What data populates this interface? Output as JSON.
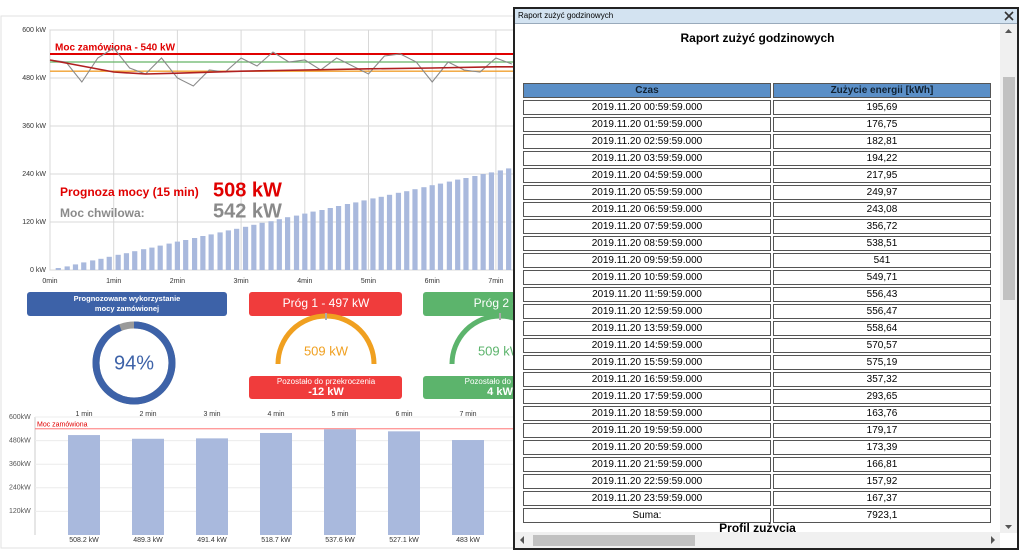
{
  "chart_data": [
    {
      "type": "bar-line",
      "grid": true,
      "xlim": [
        0,
        15
      ],
      "xticks": [
        {
          "value": 0,
          "label": "0min"
        },
        {
          "value": 1,
          "label": "1min"
        },
        {
          "value": 2,
          "label": "2min"
        },
        {
          "value": 3,
          "label": "3min"
        },
        {
          "value": 4,
          "label": "4min"
        },
        {
          "value": 5,
          "label": "5min"
        },
        {
          "value": 6,
          "label": "6min"
        },
        {
          "value": 7,
          "label": "7min"
        }
      ],
      "ylim": [
        0,
        600
      ],
      "yticks": [
        {
          "value": 0,
          "label": "0 kW"
        },
        {
          "value": 120,
          "label": "120 kW"
        },
        {
          "value": 240,
          "label": "240 kW"
        },
        {
          "value": 360,
          "label": "360 kW"
        },
        {
          "value": 480,
          "label": "480 kW"
        },
        {
          "value": 600,
          "label": "600 kW"
        }
      ],
      "series": [
        {
          "type": "bar",
          "color": "#a9b9dd",
          "x": [
            0.13,
            0.27,
            0.4,
            0.53,
            0.67,
            0.8,
            0.93,
            1.07,
            1.2,
            1.33,
            1.47,
            1.6,
            1.73,
            1.87,
            2,
            2.13,
            2.27,
            2.4,
            2.53,
            2.67,
            2.8,
            2.93,
            3.07,
            3.2,
            3.33,
            3.47,
            3.6,
            3.73,
            3.87,
            4,
            4.13,
            4.27,
            4.4,
            4.53,
            4.67,
            4.8,
            4.93,
            5.07,
            5.2,
            5.33,
            5.47,
            5.6,
            5.73,
            5.87,
            6,
            6.13,
            6.27,
            6.4,
            6.53,
            6.67,
            6.8,
            6.93,
            7.07,
            7.2
          ],
          "values": [
            5,
            9,
            14,
            19,
            24,
            28,
            33,
            38,
            42,
            47,
            52,
            56,
            61,
            66,
            71,
            75,
            80,
            85,
            89,
            94,
            99,
            103,
            108,
            113,
            118,
            122,
            127,
            132,
            136,
            141,
            146,
            150,
            155,
            160,
            165,
            169,
            174,
            179,
            183,
            188,
            193,
            197,
            202,
            207,
            212,
            216,
            221,
            226,
            230,
            235,
            240,
            244,
            249,
            254
          ]
        },
        {
          "type": "line",
          "color": "#8a8a8a",
          "x": [
            0,
            0.25,
            0.5,
            0.75,
            1,
            1.25,
            1.5,
            1.75,
            2,
            2.25,
            2.5,
            2.75,
            3,
            3.25,
            3.5,
            3.75,
            4,
            4.25,
            4.5,
            4.75,
            5,
            5.25,
            5.5,
            5.75,
            6,
            6.25,
            6.5,
            6.75,
            7,
            7.25
          ],
          "values": [
            525,
            520,
            470,
            530,
            555,
            505,
            490,
            530,
            480,
            460,
            500,
            495,
            530,
            510,
            545,
            520,
            525,
            500,
            530,
            510,
            490,
            535,
            540,
            520,
            470,
            520,
            500,
            495,
            530,
            515
          ]
        },
        {
          "type": "line",
          "color": "#b02020",
          "x": [
            0,
            0.5,
            1,
            1.5,
            2,
            3,
            4,
            5,
            6,
            7,
            7.3
          ],
          "values": [
            525,
            510,
            495,
            490,
            492,
            497,
            500,
            503,
            505,
            508,
            508
          ]
        }
      ],
      "thresholds": [
        {
          "value": 540,
          "color": "#e00000",
          "label": "Moc zamówiona - 540 kW"
        },
        {
          "value": 520,
          "color": "#66b466"
        },
        {
          "value": 497,
          "color": "#f0a030"
        }
      ],
      "annotations": [
        {
          "text": "Prognoza mocy (15 min)",
          "value_text": "508 kW",
          "color": "#e00000"
        },
        {
          "text": "Moc chwilowa:",
          "value_text": "542 kW",
          "color": "#8a8a8a"
        }
      ]
    },
    {
      "type": "bar",
      "color": "#a9b9dd",
      "categories": [
        "1 min",
        "2 min",
        "3 min",
        "4 min",
        "5 min",
        "6 min",
        "7 min"
      ],
      "values": [
        508.2,
        489.3,
        491.4,
        518.7,
        537.6,
        527.1,
        483
      ],
      "value_labels": [
        "508.2 kW",
        "489.3 kW",
        "491.4 kW",
        "518.7 kW",
        "537.6 kW",
        "527.1 kW",
        "483 kW"
      ],
      "ylim": [
        0,
        600
      ],
      "yticks": [
        {
          "value": 120,
          "label": "120kW"
        },
        {
          "value": 240,
          "label": "240kW"
        },
        {
          "value": 360,
          "label": "360kW"
        },
        {
          "value": 480,
          "label": "480kW"
        },
        {
          "value": 600,
          "label": "600kW"
        }
      ],
      "ref_line": {
        "value": 540,
        "label": "Moc zamówiona",
        "color": "#ff6060"
      }
    }
  ],
  "widgets": {
    "forecast": {
      "title_lines": [
        "Prognozowane wykorzystanie",
        "mocy zamówionej"
      ],
      "value": 94,
      "value_label": "94%"
    },
    "threshold1": {
      "title": "Próg 1 - 497 kW",
      "gauge_label": "509 kW",
      "remaining_title": "Pozostało do przekroczenia",
      "remaining": "-12 kW"
    },
    "threshold2": {
      "title": "Próg 2 - 5",
      "gauge_label": "509 kW",
      "remaining_title": "Pozostało do przekr",
      "remaining": "4 kW"
    }
  },
  "report": {
    "window_title": "Raport zużyć godzinowych",
    "heading": "Raport zużyć godzinowych",
    "columns": [
      "Czas",
      "Zużycie energii [kWh]"
    ],
    "rows": [
      [
        "2019.11.20 00:59:59.000",
        "195,69"
      ],
      [
        "2019.11.20 01:59:59.000",
        "176,75"
      ],
      [
        "2019.11.20 02:59:59.000",
        "182,81"
      ],
      [
        "2019.11.20 03:59:59.000",
        "194,22"
      ],
      [
        "2019.11.20 04:59:59.000",
        "217,95"
      ],
      [
        "2019.11.20 05:59:59.000",
        "249,97"
      ],
      [
        "2019.11.20 06:59:59.000",
        "243,08"
      ],
      [
        "2019.11.20 07:59:59.000",
        "356,72"
      ],
      [
        "2019.11.20 08:59:59.000",
        "538,51"
      ],
      [
        "2019.11.20 09:59:59.000",
        "541"
      ],
      [
        "2019.11.20 10:59:59.000",
        "549,71"
      ],
      [
        "2019.11.20 11:59:59.000",
        "556,43"
      ],
      [
        "2019.11.20 12:59:59.000",
        "556,47"
      ],
      [
        "2019.11.20 13:59:59.000",
        "558,64"
      ],
      [
        "2019.11.20 14:59:59.000",
        "570,57"
      ],
      [
        "2019.11.20 15:59:59.000",
        "575,19"
      ],
      [
        "2019.11.20 16:59:59.000",
        "357,32"
      ],
      [
        "2019.11.20 17:59:59.000",
        "293,65"
      ],
      [
        "2019.11.20 18:59:59.000",
        "163,76"
      ],
      [
        "2019.11.20 19:59:59.000",
        "179,17"
      ],
      [
        "2019.11.20 20:59:59.000",
        "173,39"
      ],
      [
        "2019.11.20 21:59:59.000",
        "166,81"
      ],
      [
        "2019.11.20 22:59:59.000",
        "157,92"
      ],
      [
        "2019.11.20 23:59:59.000",
        "167,37"
      ]
    ],
    "total": [
      "Suma:",
      "7923,1"
    ],
    "footer_heading": "Profil zużycia"
  }
}
